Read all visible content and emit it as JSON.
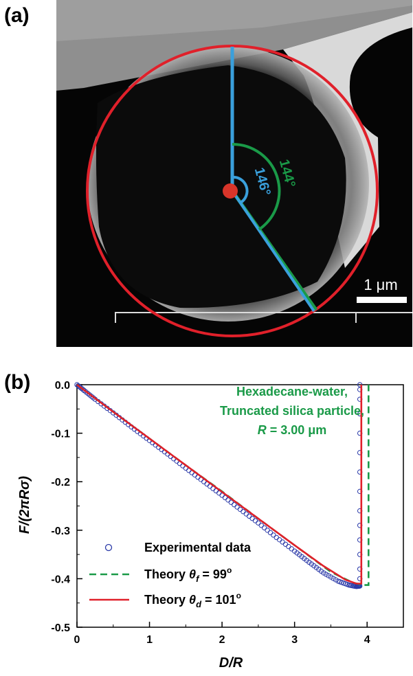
{
  "panels": {
    "a_label": "(a)",
    "b_label": "(b)"
  },
  "image_panel": {
    "angle_blue": "146°",
    "angle_green": "144°",
    "scale_bar": "1 μm",
    "colors": {
      "circle": "#e0202a",
      "blue_line": "#3aa0dc",
      "green_line": "#1a9a48",
      "center_dot": "#d8352a"
    }
  },
  "chart_data": {
    "type": "line",
    "xlabel": "D/R",
    "ylabel": "F/(2πRσ)",
    "xlim": [
      0,
      4.5
    ],
    "ylim": [
      -0.5,
      0.0
    ],
    "xticks": [
      "0",
      "1",
      "2",
      "3",
      "4"
    ],
    "yticks": [
      "0.0",
      "-0.1",
      "-0.2",
      "-0.3",
      "-0.4",
      "-0.5"
    ],
    "annotation": {
      "line1": "Hexadecane-water,",
      "line2": "Truncated silica particle,",
      "line3_var": "R",
      "line3_rest": " = 3.00 μm"
    },
    "legend_position": "lower-left",
    "series": [
      {
        "name": "Experimental data",
        "style": "markers",
        "color": "#2b3aa8",
        "x": [
          0.0,
          0.1,
          0.25,
          0.5,
          0.75,
          1.0,
          1.25,
          1.5,
          1.75,
          2.0,
          2.25,
          2.5,
          2.75,
          3.0,
          3.2,
          3.4,
          3.6,
          3.75,
          3.85,
          3.9,
          3.9,
          3.9,
          3.9,
          3.9,
          3.9,
          3.9,
          3.9,
          3.9,
          3.9,
          3.9,
          3.9,
          3.9,
          3.9,
          3.9
        ],
        "y": [
          0.0,
          -0.012,
          -0.03,
          -0.058,
          -0.087,
          -0.115,
          -0.143,
          -0.172,
          -0.2,
          -0.228,
          -0.257,
          -0.285,
          -0.315,
          -0.343,
          -0.366,
          -0.388,
          -0.405,
          -0.413,
          -0.416,
          -0.415,
          -0.4,
          -0.38,
          -0.35,
          -0.32,
          -0.29,
          -0.26,
          -0.22,
          -0.18,
          -0.14,
          -0.1,
          -0.06,
          -0.03,
          -0.01,
          0.0
        ]
      },
      {
        "name": "Theory θf = 99°",
        "legend_prefix": "Theory ",
        "legend_var": "θ",
        "legend_sub": "f",
        "legend_suffix": " = 99",
        "legend_sup": "o",
        "style": "dashed",
        "color": "#1a9a48",
        "x": [
          0.0,
          0.5,
          1.0,
          1.5,
          2.0,
          2.5,
          3.0,
          3.5,
          3.8,
          3.95,
          4.02,
          4.02
        ],
        "y": [
          0.0,
          -0.056,
          -0.111,
          -0.166,
          -0.22,
          -0.276,
          -0.331,
          -0.386,
          -0.408,
          -0.413,
          -0.413,
          0.0
        ]
      },
      {
        "name": "Theory θd = 101°",
        "legend_prefix": "Theory ",
        "legend_var": "θ",
        "legend_sub": "d",
        "legend_suffix": " = 101",
        "legend_sup": "o",
        "style": "solid",
        "color": "#e0202a",
        "x": [
          0.0,
          0.5,
          1.0,
          1.5,
          2.0,
          2.5,
          3.0,
          3.4,
          3.7,
          3.85,
          3.92,
          3.92
        ],
        "y": [
          0.0,
          -0.056,
          -0.111,
          -0.166,
          -0.221,
          -0.276,
          -0.331,
          -0.374,
          -0.402,
          -0.41,
          -0.41,
          0.0
        ]
      }
    ]
  }
}
